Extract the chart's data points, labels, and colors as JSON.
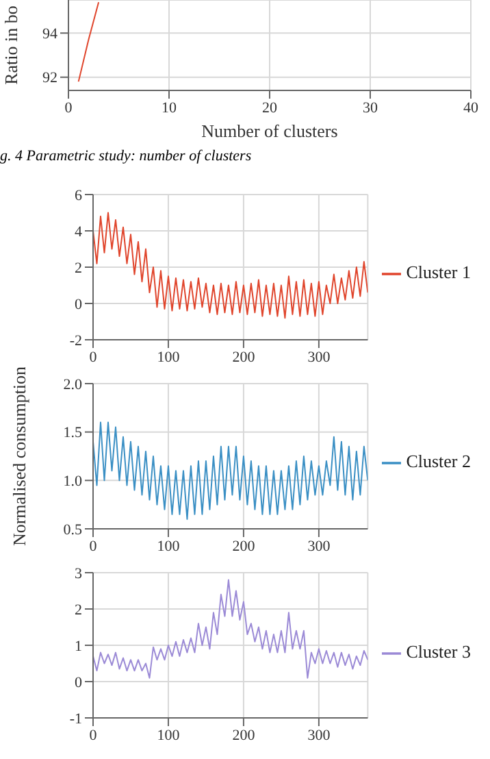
{
  "chart_data": [
    {
      "type": "line",
      "xlabel": "Number of clusters",
      "ylabel": "Ratio in bo",
      "x": [
        1,
        2,
        3
      ],
      "series": [
        {
          "color": "#e0452c",
          "values": [
            91.8,
            93.7,
            95.4
          ]
        }
      ],
      "xlim": [
        0,
        40
      ],
      "xticks": [
        0,
        10,
        20,
        30,
        40
      ],
      "ylim": [
        91.4,
        95.5
      ],
      "yticks": [
        92,
        94
      ],
      "grid": true,
      "marker": "none",
      "annotations": [
        "g. 4 Parametric study: number of clusters"
      ]
    },
    {
      "type": "line",
      "x": [
        0,
        5,
        10,
        15,
        20,
        25,
        30,
        35,
        40,
        45,
        50,
        55,
        60,
        65,
        70,
        75,
        80,
        85,
        90,
        95,
        100,
        105,
        110,
        115,
        120,
        125,
        130,
        135,
        140,
        145,
        150,
        155,
        160,
        165,
        170,
        175,
        180,
        185,
        190,
        195,
        200,
        205,
        210,
        215,
        220,
        225,
        230,
        235,
        240,
        245,
        250,
        255,
        260,
        265,
        270,
        275,
        280,
        285,
        290,
        295,
        300,
        305,
        310,
        315,
        320,
        325,
        330,
        335,
        340,
        345,
        350,
        355,
        360,
        365
      ],
      "series": [
        {
          "name": "Cluster 1",
          "color": "#e0452c",
          "values": [
            4.0,
            2.2,
            4.8,
            2.8,
            5.0,
            3.0,
            4.6,
            2.6,
            4.2,
            2.2,
            3.8,
            1.6,
            3.4,
            1.2,
            3.0,
            0.6,
            2.0,
            -0.2,
            1.8,
            -0.3,
            1.5,
            -0.4,
            1.4,
            -0.3,
            1.3,
            -0.4,
            1.2,
            -0.3,
            1.4,
            -0.2,
            1.1,
            -0.5,
            1.0,
            -0.6,
            1.1,
            -0.5,
            1.0,
            -0.6,
            1.2,
            -0.5,
            1.0,
            -0.6,
            1.1,
            -0.5,
            1.3,
            -0.7,
            1.0,
            -0.6,
            1.1,
            -0.7,
            1.0,
            -0.8,
            1.5,
            -0.6,
            1.2,
            -0.7,
            1.3,
            -0.6,
            1.1,
            -0.7,
            1.2,
            -0.6,
            1.0,
            0.0,
            1.6,
            0.0,
            1.4,
            0.2,
            1.8,
            0.3,
            2.0,
            0.4,
            2.3,
            0.6
          ]
        }
      ],
      "xlim": [
        0,
        365
      ],
      "xticks": [
        0,
        100,
        200,
        300
      ],
      "ylim": [
        -2,
        6
      ],
      "yticks": [
        -2,
        0,
        2,
        4,
        6
      ],
      "grid": true,
      "legend": "right",
      "marker": "none"
    },
    {
      "type": "line",
      "ylabel": "Normalised consumption",
      "x": [
        0,
        5,
        10,
        15,
        20,
        25,
        30,
        35,
        40,
        45,
        50,
        55,
        60,
        65,
        70,
        75,
        80,
        85,
        90,
        95,
        100,
        105,
        110,
        115,
        120,
        125,
        130,
        135,
        140,
        145,
        150,
        155,
        160,
        165,
        170,
        175,
        180,
        185,
        190,
        195,
        200,
        205,
        210,
        215,
        220,
        225,
        230,
        235,
        240,
        245,
        250,
        255,
        260,
        265,
        270,
        275,
        280,
        285,
        290,
        295,
        300,
        305,
        310,
        315,
        320,
        325,
        330,
        335,
        340,
        345,
        350,
        355,
        360,
        365
      ],
      "series": [
        {
          "name": "Cluster 2",
          "color": "#3a8fc4",
          "values": [
            1.4,
            0.95,
            1.6,
            1.0,
            1.6,
            1.1,
            1.55,
            1.0,
            1.45,
            0.95,
            1.4,
            0.9,
            1.35,
            0.85,
            1.3,
            0.8,
            1.25,
            0.75,
            1.15,
            0.7,
            1.15,
            0.65,
            1.1,
            0.65,
            1.1,
            0.6,
            1.15,
            0.65,
            1.2,
            0.65,
            1.2,
            0.7,
            1.25,
            0.75,
            1.35,
            0.8,
            1.35,
            0.85,
            1.35,
            0.8,
            1.25,
            0.75,
            1.2,
            0.7,
            1.15,
            0.65,
            1.15,
            0.65,
            1.1,
            0.65,
            1.1,
            0.7,
            1.15,
            0.7,
            1.2,
            0.75,
            1.25,
            0.8,
            1.2,
            0.85,
            1.15,
            0.85,
            1.2,
            0.95,
            1.45,
            0.9,
            1.4,
            0.85,
            1.35,
            0.8,
            1.3,
            0.85,
            1.35,
            1.0
          ]
        }
      ],
      "xlim": [
        0,
        365
      ],
      "xticks": [
        0,
        100,
        200,
        300
      ],
      "ylim": [
        0.5,
        2.0
      ],
      "yticks": [
        {
          "value": 0.5,
          "label": "0.5"
        },
        {
          "value": 1,
          "label": "1.0"
        },
        {
          "value": 1.5,
          "label": "1.5"
        },
        {
          "value": 2,
          "label": "2.0"
        }
      ],
      "grid": true,
      "legend": "right",
      "marker": "none"
    },
    {
      "type": "line",
      "x": [
        0,
        5,
        10,
        15,
        20,
        25,
        30,
        35,
        40,
        45,
        50,
        55,
        60,
        65,
        70,
        75,
        80,
        85,
        90,
        95,
        100,
        105,
        110,
        115,
        120,
        125,
        130,
        135,
        140,
        145,
        150,
        155,
        160,
        165,
        170,
        175,
        180,
        185,
        190,
        195,
        200,
        205,
        210,
        215,
        220,
        225,
        230,
        235,
        240,
        245,
        250,
        255,
        260,
        265,
        270,
        275,
        280,
        285,
        290,
        295,
        300,
        305,
        310,
        315,
        320,
        325,
        330,
        335,
        340,
        345,
        350,
        355,
        360,
        365
      ],
      "series": [
        {
          "name": "Cluster 3",
          "color": "#9b8ad6",
          "values": [
            0.7,
            0.3,
            0.8,
            0.5,
            0.75,
            0.45,
            0.8,
            0.35,
            0.65,
            0.3,
            0.6,
            0.3,
            0.6,
            0.3,
            0.5,
            0.1,
            0.95,
            0.6,
            0.9,
            0.6,
            1.0,
            0.7,
            1.1,
            0.7,
            1.15,
            0.8,
            1.2,
            0.8,
            1.6,
            1.0,
            1.5,
            0.9,
            1.9,
            1.3,
            2.4,
            1.8,
            2.8,
            1.8,
            2.5,
            1.7,
            2.2,
            1.3,
            1.6,
            1.1,
            1.5,
            0.9,
            1.4,
            0.8,
            1.3,
            0.8,
            1.4,
            0.8,
            1.9,
            0.9,
            1.4,
            0.9,
            1.4,
            0.1,
            0.8,
            0.5,
            0.9,
            0.5,
            0.85,
            0.5,
            0.8,
            0.4,
            0.8,
            0.45,
            0.75,
            0.35,
            0.7,
            0.45,
            0.85,
            0.6
          ]
        }
      ],
      "xlim": [
        0,
        365
      ],
      "xticks": [
        0,
        100,
        200,
        300
      ],
      "ylim": [
        -1,
        3
      ],
      "yticks": [
        -1,
        0,
        1,
        2,
        3
      ],
      "grid": true,
      "legend": "right",
      "marker": "none"
    }
  ]
}
